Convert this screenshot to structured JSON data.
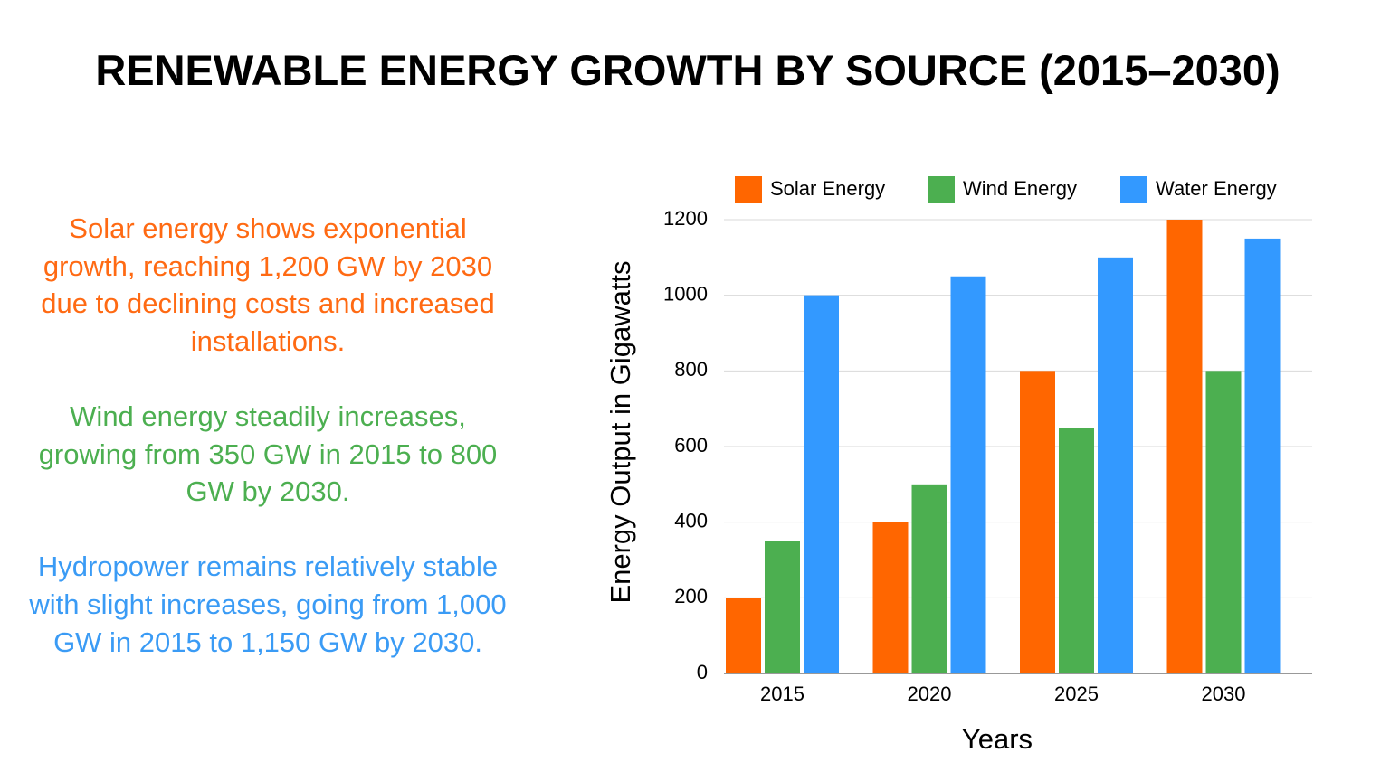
{
  "title": "RENEWABLE ENERGY GROWTH BY SOURCE (2015–2030)",
  "notes": [
    {
      "text": "Solar energy shows exponential growth, reaching 1,200 GW by 2030 due to declining costs and increased installations.",
      "color": "#ff6a13"
    },
    {
      "text": "Wind energy steadily increases, growing from 350 GW in 2015 to 800 GW by 2030.",
      "color": "#4caf50"
    },
    {
      "text": "Hydropower remains relatively stable with slight increases, going from 1,000 GW in 2015 to 1,150 GW by 2030.",
      "color": "#3a9bf5"
    }
  ],
  "chart_data": {
    "type": "bar",
    "x_label": "Years",
    "y_label": "Energy Output in Gigawatts",
    "categories": [
      "2015",
      "2020",
      "2025",
      "2030"
    ],
    "series": [
      {
        "name": "Solar Energy",
        "color": "#ff6600",
        "values": [
          200,
          400,
          800,
          1200
        ]
      },
      {
        "name": "Wind Energy",
        "color": "#4caf50",
        "values": [
          350,
          500,
          650,
          800
        ]
      },
      {
        "name": "Water Energy",
        "color": "#3399ff",
        "values": [
          1000,
          1050,
          1100,
          1150
        ]
      }
    ],
    "ylim": [
      0,
      1200
    ],
    "yticks": [
      0,
      200,
      400,
      600,
      800,
      1000,
      1200
    ],
    "grid": true,
    "legend": "top"
  }
}
